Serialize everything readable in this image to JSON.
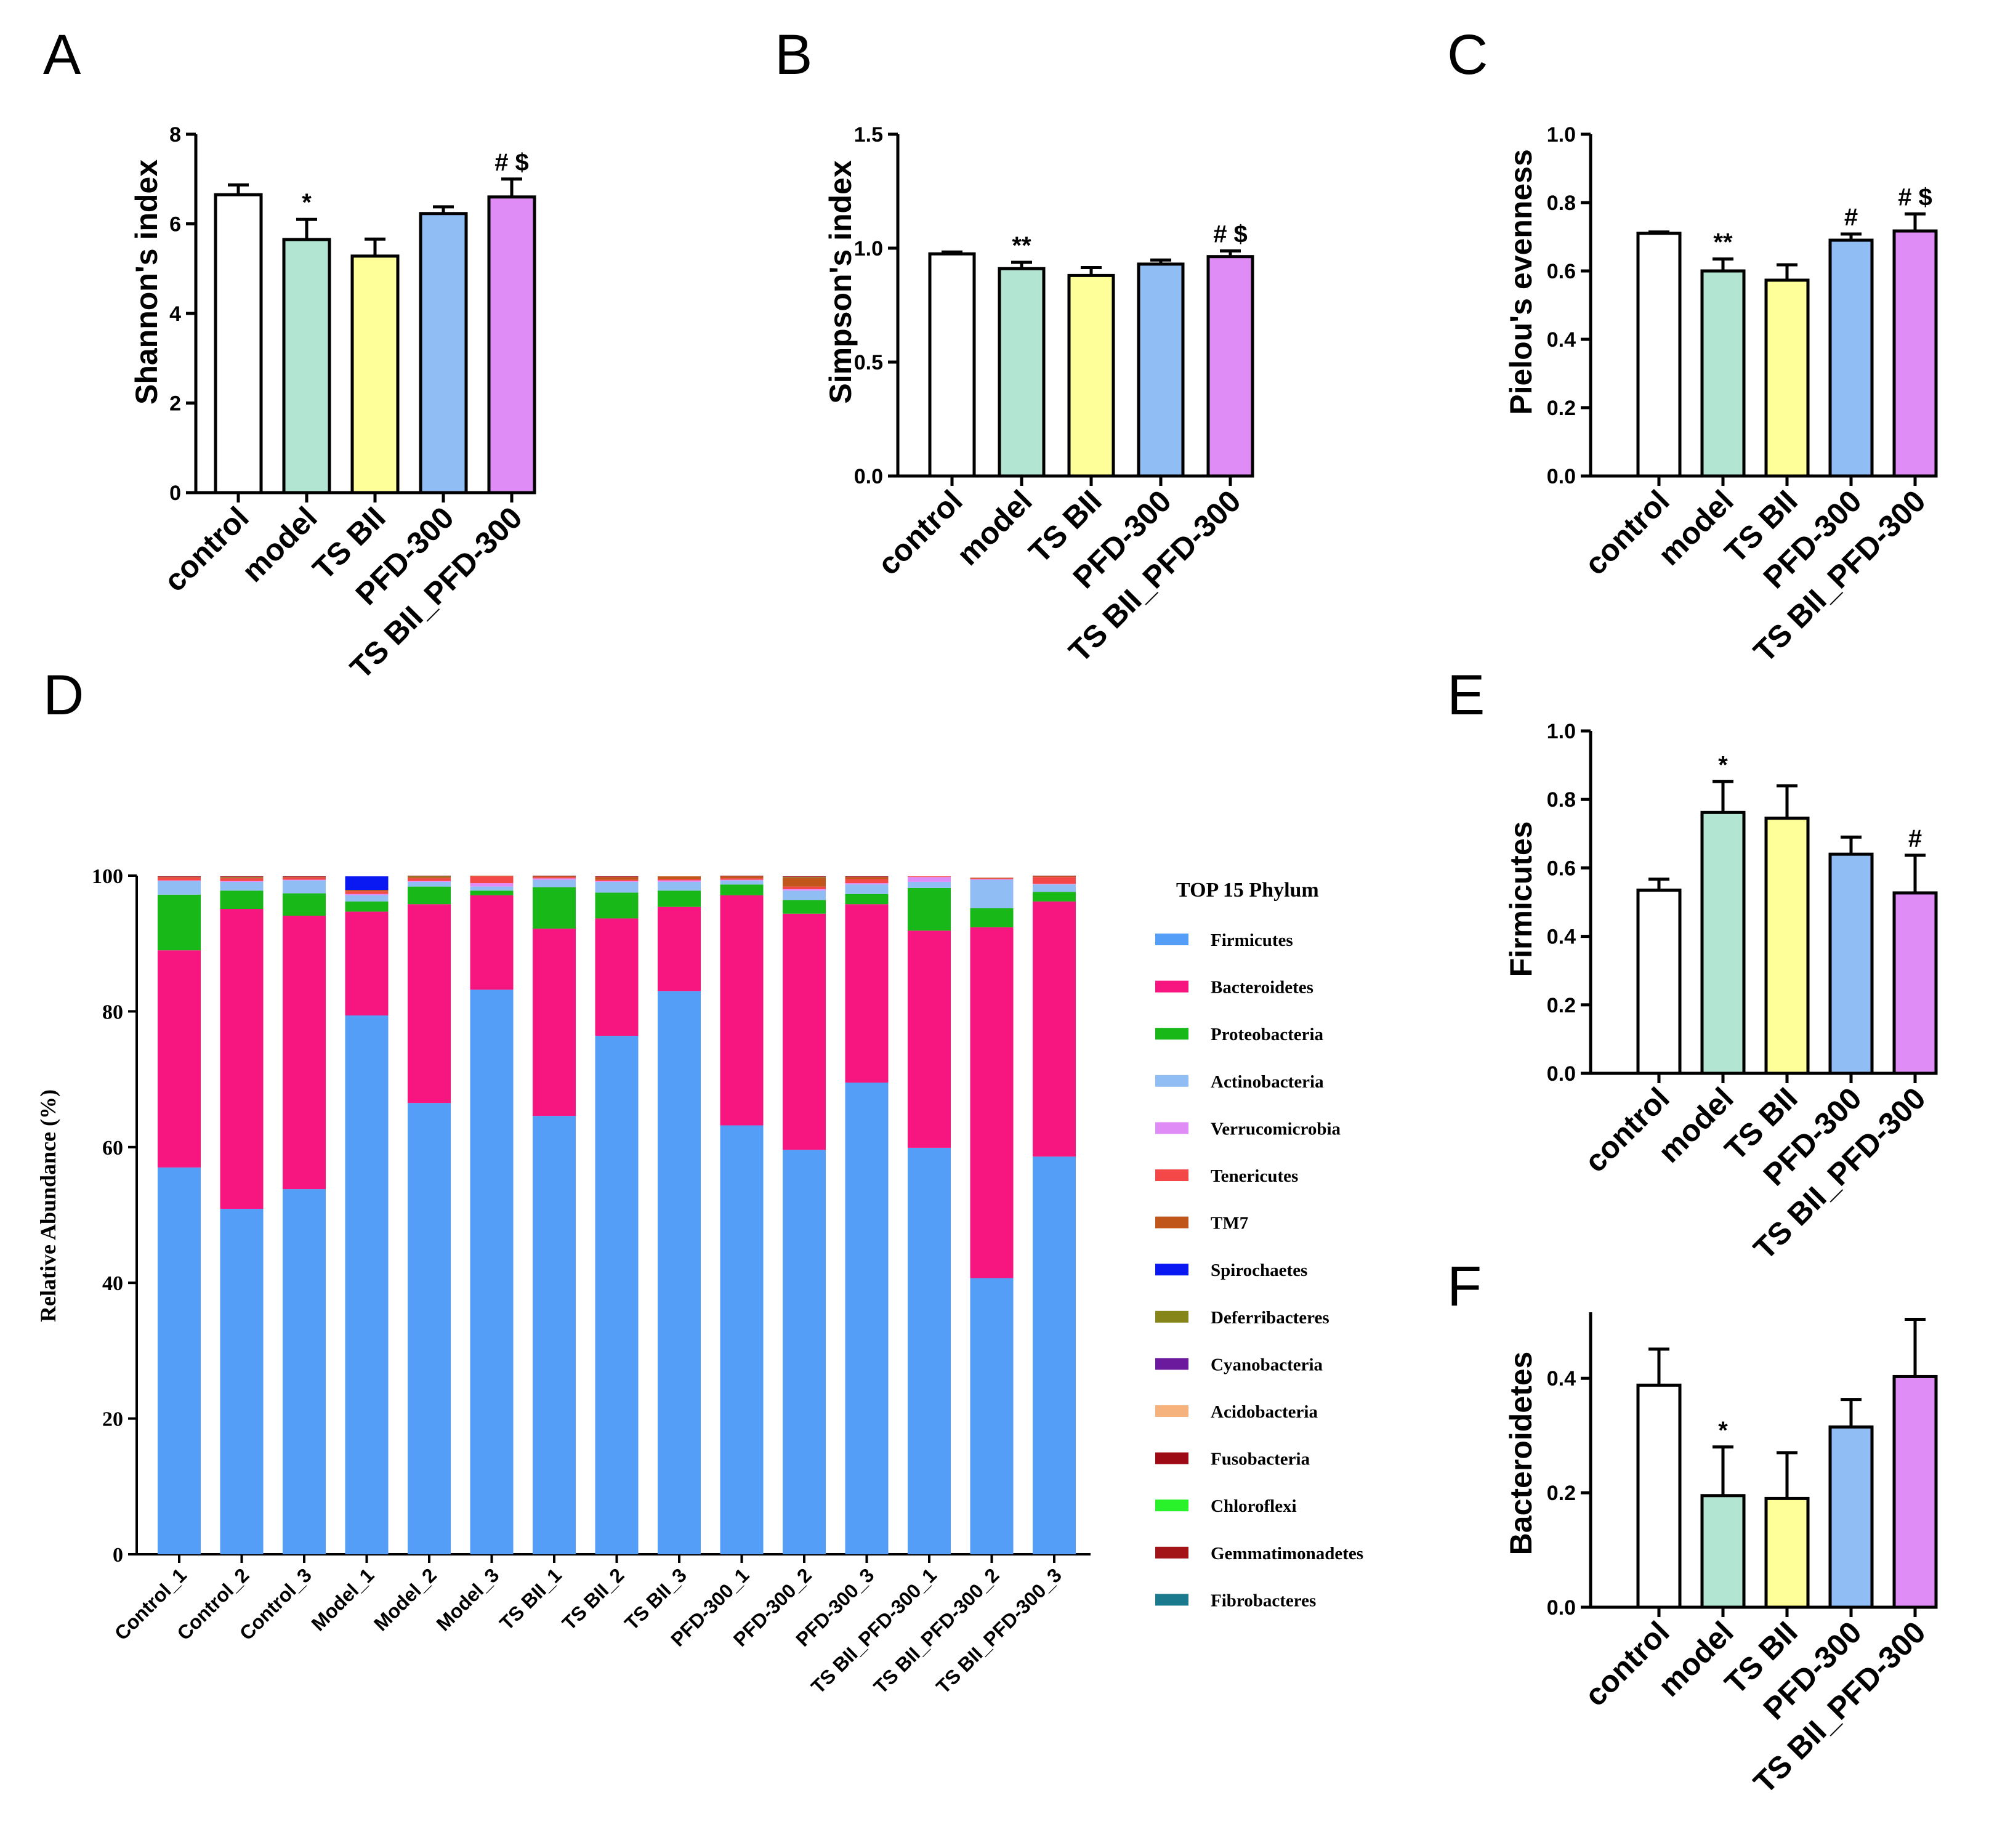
{
  "colors": {
    "control": "#ffffff",
    "model": "#b3e6d2",
    "TS BII": "#ffff99",
    "PFD-300": "#91bdf5",
    "TS BII_PFD-300": "#df8cf7",
    "axis": "#000000"
  },
  "chart_data": [
    {
      "id": "A",
      "type": "bar",
      "panel_label": "A",
      "ylabel": "Shannon's index",
      "categories": [
        "control",
        "model",
        "TS BII",
        "PFD-300",
        "TS BII_PFD-300"
      ],
      "values": [
        6.65,
        5.65,
        5.28,
        6.23,
        6.6
      ],
      "errors": [
        0.22,
        0.45,
        0.38,
        0.15,
        0.4
      ],
      "significance": [
        "",
        "*",
        "",
        "",
        "# $"
      ],
      "ylim": [
        0,
        8
      ],
      "yticks": [
        0,
        2,
        4,
        6,
        8
      ],
      "ytick_labels": [
        "0",
        "2",
        "4",
        "6",
        "8"
      ]
    },
    {
      "id": "B",
      "type": "bar",
      "panel_label": "B",
      "ylabel": "Simpson's index",
      "categories": [
        "control",
        "model",
        "TS BII",
        "PFD-300",
        "TS BII_PFD-300"
      ],
      "values": [
        0.975,
        0.91,
        0.88,
        0.93,
        0.963
      ],
      "errors": [
        0.008,
        0.028,
        0.035,
        0.018,
        0.025
      ],
      "significance": [
        "",
        "**",
        "",
        "",
        "# $"
      ],
      "ylim": [
        0,
        1.5
      ],
      "yticks": [
        0,
        0.5,
        1.0,
        1.5
      ],
      "ytick_labels": [
        "0.0",
        "0.5",
        "1.0",
        "1.5"
      ]
    },
    {
      "id": "C",
      "type": "bar",
      "panel_label": "C",
      "ylabel": "Pielou's evenness",
      "categories": [
        "control",
        "model",
        "TS BII",
        "PFD-300",
        "TS BII_PFD-300"
      ],
      "values": [
        0.71,
        0.6,
        0.573,
        0.69,
        0.717
      ],
      "errors": [
        0.004,
        0.035,
        0.045,
        0.018,
        0.05
      ],
      "significance": [
        "",
        "**",
        "",
        "#",
        "# $"
      ],
      "ylim": [
        0,
        1.0
      ],
      "yticks": [
        0,
        0.2,
        0.4,
        0.6,
        0.8,
        1.0
      ],
      "ytick_labels": [
        "0.0",
        "0.2",
        "0.4",
        "0.6",
        "0.8",
        "1.0"
      ]
    },
    {
      "id": "D",
      "type": "stacked-bar",
      "panel_label": "D",
      "ylabel": "Relative Abundance (%)",
      "legend_title": "TOP 15 Phylum",
      "ylim": [
        0,
        100
      ],
      "yticks": [
        0,
        20,
        40,
        60,
        80,
        100
      ],
      "ytick_labels": [
        "0",
        "20",
        "40",
        "60",
        "80",
        "100"
      ],
      "categories": [
        "Control_1",
        "Control_2",
        "Control_3",
        "Model_1",
        "Model_2",
        "Model_3",
        "TS BII_1",
        "TS BII_2",
        "TS BII_3",
        "PFD-300_1",
        "PFD-300_2",
        "PFD-300_3",
        "TS BII_PFD-300_1",
        "TS BII_PFD-300_2",
        "TS BII_PFD-300_3"
      ],
      "series": [
        {
          "name": "Firmicutes",
          "color": "#559ef7",
          "values": [
            57.0,
            50.9,
            53.8,
            79.4,
            66.5,
            83.2,
            64.6,
            76.4,
            83.0,
            63.2,
            59.6,
            69.5,
            59.9,
            40.7,
            58.6
          ]
        },
        {
          "name": "Bacteroidetes",
          "color": "#f7157f",
          "values": [
            32.0,
            44.2,
            40.3,
            15.3,
            29.3,
            13.9,
            27.6,
            17.3,
            12.4,
            33.9,
            34.8,
            26.3,
            32.0,
            51.7,
            37.6
          ]
        },
        {
          "name": "Proteobacteria",
          "color": "#18b818",
          "values": [
            8.2,
            2.7,
            3.3,
            1.5,
            2.6,
            0.7,
            6.1,
            3.8,
            2.4,
            1.6,
            2.0,
            1.5,
            6.3,
            2.8,
            1.4
          ]
        },
        {
          "name": "Actinobacteria",
          "color": "#91bdf5",
          "values": [
            2.0,
            1.3,
            1.9,
            0.9,
            0.7,
            0.6,
            1.1,
            1.6,
            1.3,
            0.6,
            1.4,
            1.4,
            0.9,
            4.2,
            1.1
          ]
        },
        {
          "name": "Verrucomicrobia",
          "color": "#df8cf7",
          "values": [
            0.1,
            0.1,
            0.1,
            0.2,
            0.1,
            0.5,
            0.2,
            0.1,
            0.2,
            0.1,
            0.2,
            0.2,
            0.7,
            0.1,
            0.1
          ]
        },
        {
          "name": "Tenericutes",
          "color": "#f44747",
          "values": [
            0.4,
            0.4,
            0.3,
            0.4,
            0.4,
            1.0,
            0.2,
            0.2,
            0.2,
            0.2,
            0.4,
            0.6,
            0.1,
            0.1,
            1.0
          ]
        },
        {
          "name": "TM7",
          "color": "#c1561a",
          "values": [
            0.1,
            0.1,
            0.1,
            0.2,
            0.2,
            0.1,
            0.1,
            0.4,
            0.4,
            0.3,
            1.3,
            0.3,
            0.0,
            0.1,
            0.1
          ]
        },
        {
          "name": "Spirochaetes",
          "color": "#0a19f2",
          "values": [
            0.0,
            0.0,
            0.0,
            2.0,
            0.0,
            0.0,
            0.0,
            0.0,
            0.0,
            0.0,
            0.0,
            0.0,
            0.0,
            0.0,
            0.0
          ]
        },
        {
          "name": "Deferribacteres",
          "color": "#85851a",
          "values": [
            0.0,
            0.1,
            0.0,
            0.0,
            0.1,
            0.0,
            0.0,
            0.0,
            0.0,
            0.0,
            0.1,
            0.0,
            0.0,
            0.0,
            0.0
          ]
        },
        {
          "name": "Cyanobacteria",
          "color": "#6b1a9e",
          "values": [
            0.0,
            0.0,
            0.0,
            0.0,
            0.0,
            0.0,
            0.0,
            0.0,
            0.0,
            0.0,
            0.0,
            0.0,
            0.0,
            0.0,
            0.0
          ]
        },
        {
          "name": "Acidobacteria",
          "color": "#f5b27d",
          "values": [
            0.0,
            0.0,
            0.0,
            0.0,
            0.0,
            0.0,
            0.0,
            0.0,
            0.0,
            0.0,
            0.0,
            0.0,
            0.0,
            0.0,
            0.0
          ]
        },
        {
          "name": "Fusobacteria",
          "color": "#9e0a14",
          "values": [
            0.1,
            0.1,
            0.1,
            0.0,
            0.1,
            0.0,
            0.1,
            0.1,
            0.0,
            0.1,
            0.1,
            0.1,
            0.0,
            0.0,
            0.1
          ]
        },
        {
          "name": "Chloroflexi",
          "color": "#2af22a",
          "values": [
            0.0,
            0.0,
            0.0,
            0.0,
            0.0,
            0.0,
            0.0,
            0.0,
            0.0,
            0.0,
            0.0,
            0.0,
            0.0,
            0.0,
            0.0
          ]
        },
        {
          "name": "Gemmatimonadetes",
          "color": "#a31418",
          "values": [
            0.0,
            0.0,
            0.0,
            0.0,
            0.0,
            0.0,
            0.0,
            0.0,
            0.0,
            0.0,
            0.0,
            0.0,
            0.0,
            0.0,
            0.0
          ]
        },
        {
          "name": "Fibrobacteres",
          "color": "#1c7a8e",
          "values": [
            0.0,
            0.0,
            0.0,
            0.0,
            0.0,
            0.0,
            0.0,
            0.0,
            0.0,
            0.0,
            0.0,
            0.0,
            0.0,
            0.0,
            0.0
          ]
        }
      ]
    },
    {
      "id": "E",
      "type": "bar",
      "panel_label": "E",
      "ylabel": "Firmicutes",
      "categories": [
        "control",
        "model",
        "TS BII",
        "PFD-300",
        "TS BII_PFD-300"
      ],
      "values": [
        0.535,
        0.762,
        0.745,
        0.64,
        0.527
      ],
      "errors": [
        0.032,
        0.09,
        0.095,
        0.05,
        0.11
      ],
      "significance": [
        "",
        "*",
        "",
        "",
        "#"
      ],
      "ylim": [
        0,
        1.0
      ],
      "yticks": [
        0,
        0.2,
        0.4,
        0.6,
        0.8,
        1.0
      ],
      "ytick_labels": [
        "0.0",
        "0.2",
        "0.4",
        "0.6",
        "0.8",
        "1.0"
      ]
    },
    {
      "id": "F",
      "type": "bar",
      "panel_label": "F",
      "ylabel": "Bacteroidetes",
      "categories": [
        "control",
        "model",
        "TS BII",
        "PFD-300",
        "TS BII_PFD-300"
      ],
      "values": [
        0.388,
        0.195,
        0.19,
        0.315,
        0.403
      ],
      "errors": [
        0.063,
        0.085,
        0.08,
        0.048,
        0.1
      ],
      "significance": [
        "",
        "*",
        "",
        "",
        ""
      ],
      "ylim": [
        0,
        0.51
      ],
      "yticks": [
        0,
        0.2,
        0.4
      ],
      "ytick_labels": [
        "0.0",
        "0.2",
        "0.4"
      ]
    }
  ]
}
